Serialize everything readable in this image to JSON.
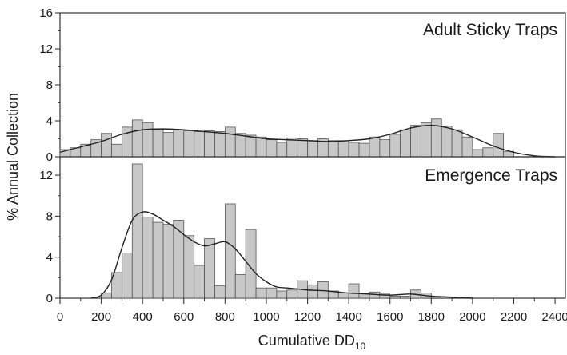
{
  "chart_data": [
    {
      "type": "bar",
      "title": "Adult Sticky Traps",
      "bin_width": 50,
      "x": [
        25,
        75,
        125,
        175,
        225,
        275,
        325,
        375,
        425,
        475,
        525,
        575,
        625,
        675,
        725,
        775,
        825,
        875,
        925,
        975,
        1025,
        1075,
        1125,
        1175,
        1225,
        1275,
        1325,
        1375,
        1425,
        1475,
        1525,
        1575,
        1625,
        1675,
        1725,
        1775,
        1825,
        1875,
        1925,
        1975,
        2025,
        2075,
        2125,
        2175
      ],
      "values": [
        0.8,
        1.0,
        1.4,
        1.9,
        2.6,
        1.4,
        3.3,
        4.1,
        3.8,
        3.1,
        2.7,
        3.0,
        2.9,
        2.8,
        2.9,
        2.8,
        3.3,
        2.6,
        2.4,
        2.2,
        1.9,
        1.6,
        2.1,
        2.0,
        1.8,
        2.0,
        1.8,
        1.8,
        1.6,
        1.5,
        2.2,
        1.9,
        2.5,
        3.0,
        3.5,
        3.8,
        4.2,
        3.4,
        3.0,
        2.2,
        0.8,
        1.0,
        2.6,
        0.6
      ],
      "fit_curve": {
        "x": [
          0,
          100,
          200,
          300,
          400,
          500,
          600,
          700,
          800,
          900,
          1000,
          1100,
          1200,
          1300,
          1400,
          1500,
          1600,
          1700,
          1800,
          1900,
          2000,
          2100,
          2200,
          2300,
          2400
        ],
        "y": [
          0.5,
          1.1,
          1.7,
          2.5,
          3.0,
          3.1,
          3.0,
          2.8,
          2.6,
          2.3,
          2.0,
          1.9,
          1.8,
          1.7,
          1.8,
          2.0,
          2.5,
          3.2,
          3.5,
          3.1,
          2.2,
          1.2,
          0.5,
          0.1,
          0.0
        ]
      },
      "ylim": [
        0,
        16
      ],
      "yticks": [
        0,
        4,
        8,
        12,
        16
      ],
      "ytick_labels": [
        "0",
        "4",
        "8",
        "12",
        "16"
      ]
    },
    {
      "type": "bar",
      "title": "Emergence Traps",
      "bin_width": 50,
      "x": [
        225,
        275,
        325,
        375,
        425,
        475,
        525,
        575,
        625,
        675,
        725,
        775,
        825,
        875,
        925,
        975,
        1025,
        1075,
        1125,
        1175,
        1225,
        1275,
        1325,
        1375,
        1425,
        1475,
        1525,
        1575,
        1625,
        1675,
        1725,
        1775
      ],
      "values": [
        0.5,
        2.5,
        4.4,
        13.1,
        7.9,
        7.4,
        7.2,
        7.6,
        6.1,
        3.2,
        5.8,
        1.2,
        9.2,
        2.3,
        6.7,
        1.0,
        1.0,
        0.7,
        0.8,
        1.7,
        1.3,
        1.6,
        0.7,
        0.5,
        1.4,
        0.5,
        0.6,
        0.4,
        0.2,
        0.2,
        0.8,
        0.5
      ],
      "fit_curve": {
        "x": [
          150,
          200,
          250,
          300,
          350,
          400,
          450,
          500,
          550,
          600,
          650,
          700,
          750,
          800,
          850,
          900,
          950,
          1000,
          1050,
          1100,
          1150,
          1200,
          1300,
          1400,
          1500,
          1600,
          1700,
          1800,
          1900,
          2000
        ],
        "y": [
          0.0,
          0.3,
          1.8,
          4.9,
          7.6,
          8.4,
          8.2,
          7.6,
          7.0,
          6.2,
          5.5,
          5.1,
          5.3,
          5.5,
          4.8,
          3.6,
          2.4,
          1.6,
          1.1,
          1.0,
          0.9,
          0.8,
          0.7,
          0.5,
          0.4,
          0.3,
          0.4,
          0.2,
          0.1,
          0.0
        ]
      },
      "ylim": [
        0,
        13.8
      ],
      "yticks": [
        0,
        4,
        8,
        12
      ],
      "ytick_labels": [
        "0",
        "4",
        "8",
        "12"
      ]
    }
  ],
  "x_axis": {
    "xlim": [
      0,
      2450
    ],
    "ticks": [
      0,
      200,
      400,
      600,
      800,
      1000,
      1200,
      1400,
      1600,
      1800,
      2000,
      2200,
      2400
    ],
    "tick_labels": [
      "0",
      "200",
      "400",
      "600",
      "800",
      "1000",
      "1200",
      "1400",
      "1600",
      "1800",
      "2000",
      "2200",
      "2400"
    ],
    "label_main": "Cumulative DD",
    "label_sub": "10"
  },
  "y_axis_label": "% Annual Collection",
  "colors": {
    "bar_fill": "#c8c8c8",
    "bar_stroke": "#555555",
    "curve": "#222222",
    "axis": "#333333"
  }
}
